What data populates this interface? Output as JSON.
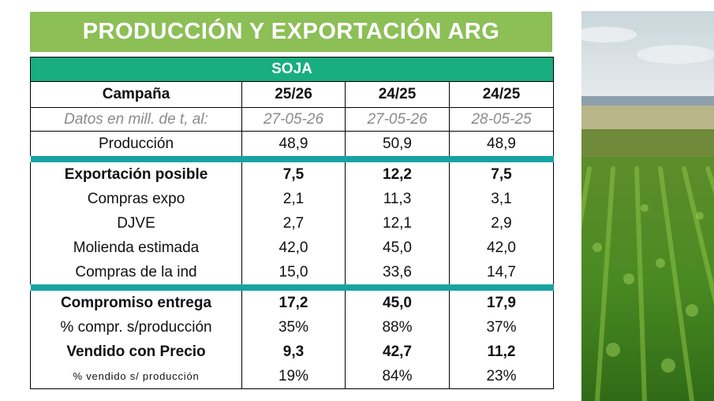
{
  "title": "PRODUCCIÓN Y EXPORTACIÓN ARG",
  "table": {
    "section": "SOJA",
    "header": [
      "Campaña",
      "25/26",
      "24/25",
      "24/25"
    ],
    "datos": [
      "Datos en mill. de t, al:",
      "27-05-26",
      "27-05-26",
      "28-05-25"
    ],
    "produccion": [
      "Producción",
      "48,9",
      "50,9",
      "48,9"
    ],
    "export": [
      [
        "Exportación posible",
        "7,5",
        "12,2",
        "7,5"
      ],
      [
        "Compras expo",
        "2,1",
        "11,3",
        "3,1"
      ],
      [
        "DJVE",
        "2,7",
        "12,1",
        "2,9"
      ],
      [
        "Molienda estimada",
        "42,0",
        "45,0",
        "42,0"
      ],
      [
        "Compras de la ind",
        "15,0",
        "33,6",
        "14,7"
      ]
    ],
    "compromiso": [
      [
        "Compromiso entrega",
        "17,2",
        "45,0",
        "17,9"
      ],
      [
        "% compr. s/producción",
        "35%",
        "88%",
        "37%"
      ],
      [
        "Vendido con Precio",
        "9,3",
        "42,7",
        "11,2"
      ],
      [
        "% vendido s/ producción",
        "19%",
        "84%",
        "23%"
      ]
    ]
  },
  "colors": {
    "title_bg": "#8cbf56",
    "section_bg": "#19ae7e",
    "separator": "#17a3a3"
  },
  "image": {
    "subject": "soybean-field-photo"
  }
}
